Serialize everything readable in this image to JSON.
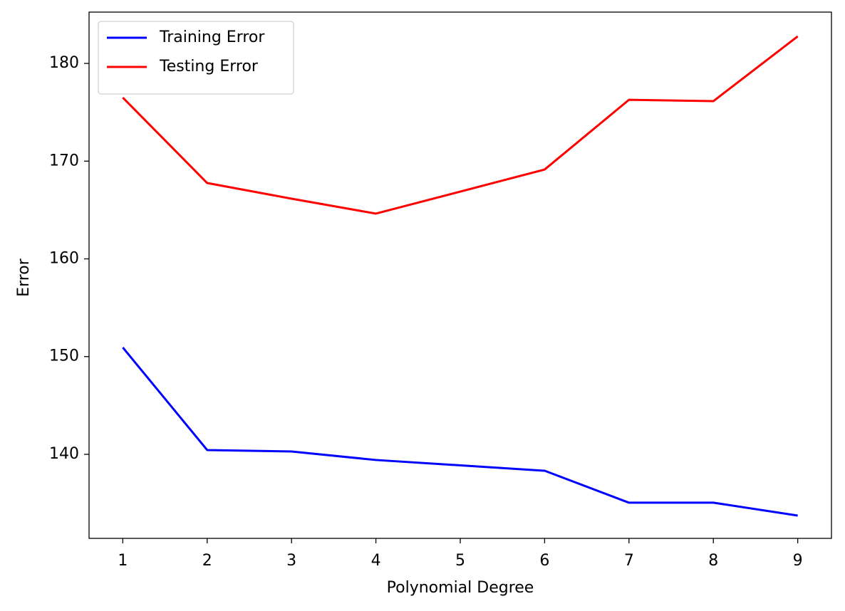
{
  "chart_data": {
    "type": "line",
    "x_label": "Polynomial Degree",
    "y_label": "Error",
    "x": [
      1,
      2,
      3,
      4,
      6,
      7,
      8,
      9
    ],
    "series": [
      {
        "name": "Training Error",
        "color": "#0000ff",
        "values": [
          150.93,
          140.44,
          140.29,
          139.42,
          138.32,
          135.05,
          135.05,
          133.73
        ]
      },
      {
        "name": "Testing Error",
        "color": "#ff0000",
        "values": [
          176.5,
          167.76,
          166.16,
          164.63,
          169.14,
          176.28,
          176.14,
          182.77
        ]
      }
    ],
    "xlim": [
      0.6,
      9.4
    ],
    "xticks": [
      1,
      2,
      3,
      4,
      5,
      6,
      7,
      8,
      9
    ],
    "ylim": [
      131.4,
      185.25
    ],
    "yticks": [
      140,
      150,
      160,
      170,
      180
    ],
    "grid": false,
    "legend": "upper left"
  }
}
